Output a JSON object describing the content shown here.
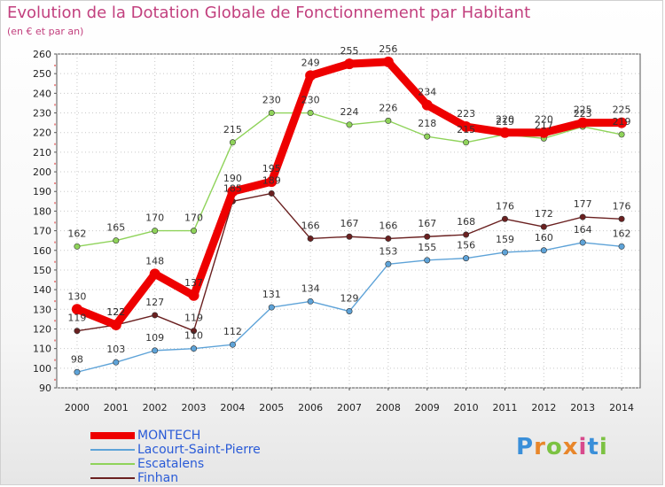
{
  "header": {
    "title": "Evolution de la Dotation Globale de Fonctionnement par Habitant",
    "subtitle": "(en € et par an)"
  },
  "logo": {
    "letters": [
      "P",
      "r",
      "o",
      "x",
      "i",
      "t",
      "i"
    ],
    "colors": [
      "#3a8fd9",
      "#e8862a",
      "#7cc242",
      "#e8862a",
      "#d84a8c",
      "#3a8fd9",
      "#7cc242"
    ]
  },
  "chart_data": {
    "type": "line",
    "title": "Evolution de la Dotation Globale de Fonctionnement par Habitant",
    "subtitle": "(en € et par an)",
    "xlabel": "",
    "ylabel": "",
    "ylim": [
      90,
      260
    ],
    "grid": true,
    "categories": [
      "2000",
      "2001",
      "2002",
      "2003",
      "2004",
      "2005",
      "2006",
      "2007",
      "2008",
      "2009",
      "2010",
      "2011",
      "2012",
      "2013",
      "2014"
    ],
    "yticks": [
      "90",
      "100",
      "110",
      "120",
      "130",
      "140",
      "150",
      "160",
      "170",
      "180",
      "190",
      "200",
      "210",
      "220",
      "230",
      "240",
      "250",
      "260"
    ],
    "series": [
      {
        "name": "MONTECH",
        "color": "#ee0000",
        "values": [
          130,
          122,
          148,
          137,
          190,
          195,
          249,
          255,
          256,
          234,
          223,
          220,
          220,
          225,
          225
        ]
      },
      {
        "name": "Lacourt-Saint-Pierre",
        "color": "#5ea3d8",
        "values": [
          98,
          103,
          109,
          110,
          112,
          131,
          134,
          129,
          153,
          155,
          156,
          159,
          160,
          164,
          162
        ]
      },
      {
        "name": "Escatalens",
        "color": "#8fd35a",
        "values": [
          162,
          165,
          170,
          170,
          215,
          230,
          230,
          224,
          226,
          218,
          215,
          219,
          217,
          223,
          219
        ]
      },
      {
        "name": "Finhan",
        "color": "#6a2020",
        "values": [
          119,
          122,
          127,
          119,
          185,
          189,
          166,
          167,
          166,
          167,
          168,
          176,
          172,
          177,
          176
        ]
      }
    ]
  }
}
